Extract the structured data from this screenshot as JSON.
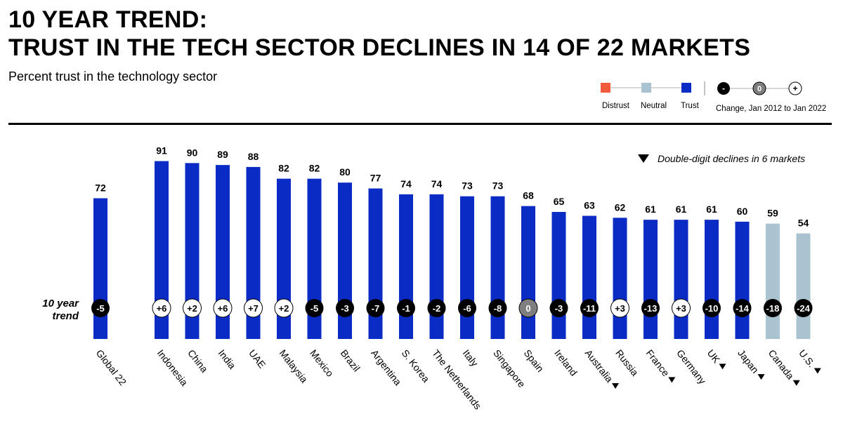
{
  "title_line1": "10 YEAR TREND:",
  "title_line2": "TRUST IN THE TECH SECTOR DECLINES IN 14 OF 22 MARKETS",
  "subtitle": "Percent trust in the technology sector",
  "legend": {
    "distrust": "Distrust",
    "neutral": "Neutral",
    "trust": "Trust",
    "change_label": "Change, Jan 2012 to Jan 2022",
    "minus_symbol": "-",
    "zero_symbol": "0",
    "plus_symbol": "+"
  },
  "annotation": "Double-digit declines in 6 markets",
  "trend_label_line1": "10 year",
  "trend_label_line2": "trend",
  "colors": {
    "trust": "#0a2bc4",
    "neutral": "#a9c4d0",
    "distrust": "#f15a3a",
    "negative_change": "#000000",
    "zero_change": "#7f7f7f",
    "positive_change": "#ffffff"
  },
  "chart_data": {
    "type": "bar",
    "categories": [
      "Global 22",
      "Indonesia",
      "China",
      "India",
      "UAE",
      "Malaysia",
      "Mexico",
      "Brazil",
      "Argentina",
      "S. Korea",
      "The Netherlands",
      "Italy",
      "Singapore",
      "Spain",
      "Ireland",
      "Australia",
      "Russia",
      "France",
      "Germany",
      "UK",
      "Japan",
      "Canada",
      "U.S."
    ],
    "values": [
      72,
      91,
      90,
      89,
      88,
      82,
      82,
      80,
      77,
      74,
      74,
      73,
      73,
      68,
      65,
      63,
      62,
      61,
      61,
      61,
      60,
      59,
      54
    ],
    "status": [
      "trust",
      "trust",
      "trust",
      "trust",
      "trust",
      "trust",
      "trust",
      "trust",
      "trust",
      "trust",
      "trust",
      "trust",
      "trust",
      "trust",
      "trust",
      "trust",
      "trust",
      "trust",
      "trust",
      "trust",
      "trust",
      "neutral",
      "neutral"
    ],
    "trend": [
      "-5",
      "+6",
      "+2",
      "+6",
      "+7",
      "+2",
      "-5",
      "-3",
      "-7",
      "-1",
      "-2",
      "-6",
      "-8",
      "0",
      "-3",
      "-11",
      "+3",
      "-13",
      "+3",
      "-10",
      "-14",
      "-18",
      "-24"
    ],
    "double_digit_decline": [
      false,
      false,
      false,
      false,
      false,
      false,
      false,
      false,
      false,
      false,
      false,
      false,
      false,
      false,
      false,
      true,
      false,
      true,
      false,
      true,
      true,
      true,
      true
    ],
    "ylim": [
      0,
      100
    ]
  }
}
